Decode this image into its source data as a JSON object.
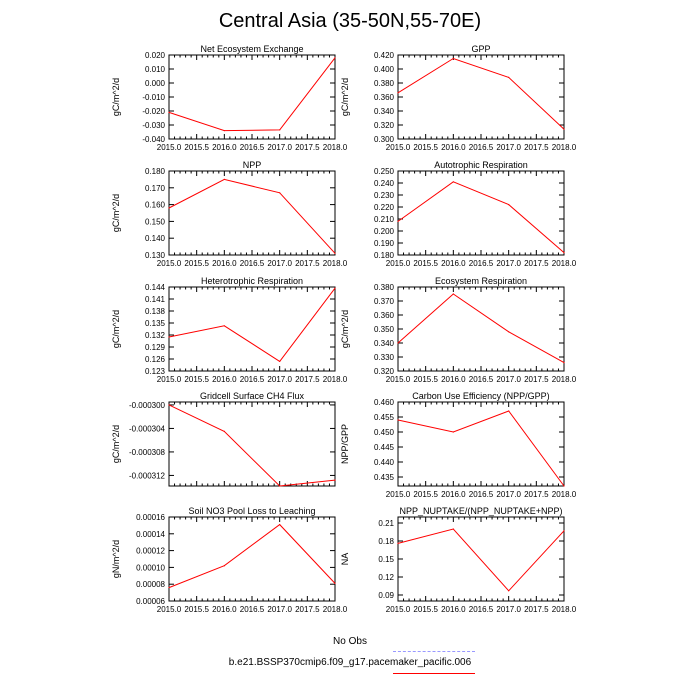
{
  "title": "Central Asia (35-50N,55-70E)",
  "colors": {
    "model": "#ff0000",
    "obs": "#9999ff",
    "axis": "#000000"
  },
  "legend": {
    "obs_label": "No Obs",
    "model_label": "b.e21.BSSP370cmip6.f09_g17.pacemaker_pacific.006"
  },
  "chart_data": [
    {
      "type": "line",
      "title": "Net Ecosystem Exchange",
      "ylabel": "gC/m^2/d",
      "x": [
        2015,
        2016,
        2017,
        2018
      ],
      "values": [
        -0.021,
        -0.034,
        -0.0335,
        0.018
      ],
      "xlim": [
        2015,
        2018
      ],
      "ylim": [
        -0.04,
        0.02
      ],
      "xticks": [
        "2015.0",
        "2015.5",
        "2016.0",
        "2016.5",
        "2017.0",
        "2017.5",
        "2018.0"
      ],
      "yticks": [
        "-0.040",
        "-0.030",
        "-0.020",
        "-0.010",
        "0.000",
        "0.010",
        "0.020"
      ],
      "ytick_values": [
        -0.04,
        -0.03,
        -0.02,
        -0.01,
        0,
        0.01,
        0.02
      ]
    },
    {
      "type": "line",
      "title": "GPP",
      "ylabel": "gC/m^2/d",
      "x": [
        2015,
        2016,
        2017,
        2018
      ],
      "values": [
        0.366,
        0.415,
        0.388,
        0.314
      ],
      "xlim": [
        2015,
        2018
      ],
      "ylim": [
        0.3,
        0.42
      ],
      "xticks": [
        "2015.0",
        "2015.5",
        "2016.0",
        "2016.5",
        "2017.0",
        "2017.5",
        "2018.0"
      ],
      "yticks": [
        "0.300",
        "0.320",
        "0.340",
        "0.360",
        "0.380",
        "0.400",
        "0.420"
      ],
      "ytick_values": [
        0.3,
        0.32,
        0.34,
        0.36,
        0.38,
        0.4,
        0.42
      ]
    },
    {
      "type": "line",
      "title": "NPP",
      "ylabel": "gC/m^2/d",
      "x": [
        2015,
        2016,
        2017,
        2018
      ],
      "values": [
        0.158,
        0.175,
        0.167,
        0.131
      ],
      "xlim": [
        2015,
        2018
      ],
      "ylim": [
        0.13,
        0.18
      ],
      "xticks": [
        "2015.0",
        "2015.5",
        "2016.0",
        "2016.5",
        "2017.0",
        "2017.5",
        "2018.0"
      ],
      "yticks": [
        "0.130",
        "0.140",
        "0.150",
        "0.160",
        "0.170",
        "0.180"
      ],
      "ytick_values": [
        0.13,
        0.14,
        0.15,
        0.16,
        0.17,
        0.18
      ]
    },
    {
      "type": "line",
      "title": "Autotrophic Respiration",
      "ylabel": "",
      "x": [
        2015,
        2016,
        2017,
        2018
      ],
      "values": [
        0.208,
        0.241,
        0.222,
        0.182
      ],
      "xlim": [
        2015,
        2018
      ],
      "ylim": [
        0.18,
        0.25
      ],
      "xticks": [
        "2015.0",
        "2015.5",
        "2016.0",
        "2016.5",
        "2017.0",
        "2017.5",
        "2018.0"
      ],
      "yticks": [
        "0.180",
        "0.190",
        "0.200",
        "0.210",
        "0.220",
        "0.230",
        "0.240",
        "0.250"
      ],
      "ytick_values": [
        0.18,
        0.19,
        0.2,
        0.21,
        0.22,
        0.23,
        0.24,
        0.25
      ]
    },
    {
      "type": "line",
      "title": "Heterotrophic Respiration",
      "ylabel": "gC/m^2/d",
      "x": [
        2015,
        2016,
        2017,
        2018
      ],
      "values": [
        0.1315,
        0.1343,
        0.1254,
        0.1437
      ],
      "xlim": [
        2015,
        2018
      ],
      "ylim": [
        0.123,
        0.144
      ],
      "xticks": [
        "2015.0",
        "2015.5",
        "2016.0",
        "2016.5",
        "2017.0",
        "2017.5",
        "2018.0"
      ],
      "yticks": [
        "0.123",
        "0.126",
        "0.129",
        "0.132",
        "0.135",
        "0.138",
        "0.141",
        "0.144"
      ],
      "ytick_values": [
        0.123,
        0.126,
        0.129,
        0.132,
        0.135,
        0.138,
        0.141,
        0.144
      ]
    },
    {
      "type": "line",
      "title": "Ecosystem Respiration",
      "ylabel": "gC/m^2/d",
      "x": [
        2015,
        2016,
        2017,
        2018
      ],
      "values": [
        0.34,
        0.375,
        0.348,
        0.326
      ],
      "xlim": [
        2015,
        2018
      ],
      "ylim": [
        0.32,
        0.38
      ],
      "xticks": [
        "2015.0",
        "2015.5",
        "2016.0",
        "2016.5",
        "2017.0",
        "2017.5",
        "2018.0"
      ],
      "yticks": [
        "0.320",
        "0.330",
        "0.340",
        "0.350",
        "0.360",
        "0.370",
        "0.380"
      ],
      "ytick_values": [
        0.32,
        0.33,
        0.34,
        0.35,
        0.36,
        0.37,
        0.38
      ]
    },
    {
      "type": "line",
      "title": "Gridcell Surface CH4 Flux",
      "ylabel": "gC/m^2/d",
      "x": [
        2015,
        2016,
        2017,
        2018
      ],
      "values": [
        -0.0003,
        -0.0003045,
        -0.0003138,
        -0.0003128
      ],
      "xlim": [
        2015,
        2018
      ],
      "ylim": [
        -0.0003138,
        -0.0002995
      ],
      "xticks": [],
      "yticks": [
        "-0.000300",
        "-0.000304",
        "-0.000308",
        "-0.000312"
      ],
      "ytick_values": [
        -0.0003,
        -0.000304,
        -0.000308,
        -0.000312
      ]
    },
    {
      "type": "line",
      "title": "Carbon Use Efficiency (NPP/GPP)",
      "ylabel": "NPP/GPP",
      "x": [
        2015,
        2016,
        2017,
        2018
      ],
      "values": [
        0.454,
        0.45,
        0.457,
        0.432
      ],
      "xlim": [
        2015,
        2018
      ],
      "ylim": [
        0.432,
        0.46
      ],
      "xticks": [
        "2015.0",
        "2015.5",
        "2016.0",
        "2016.5",
        "2017.0",
        "2017.5",
        "2018.0"
      ],
      "yticks": [
        "0.435",
        "0.440",
        "0.445",
        "0.450",
        "0.455",
        "0.460"
      ],
      "ytick_values": [
        0.435,
        0.44,
        0.445,
        0.45,
        0.455,
        0.46
      ]
    },
    {
      "type": "line",
      "title": "Soil NO3 Pool Loss to Leaching",
      "ylabel": "gN/m^2/d",
      "x": [
        2015,
        2016,
        2017,
        2018
      ],
      "values": [
        7.6e-05,
        0.000102,
        0.000151,
        8.1e-05
      ],
      "xlim": [
        2015,
        2018
      ],
      "ylim": [
        6e-05,
        0.00016
      ],
      "xticks": [
        "2015.0",
        "2015.5",
        "2016.0",
        "2016.5",
        "2017.0",
        "2017.5",
        "2018.0"
      ],
      "yticks": [
        "0.00006",
        "0.00008",
        "0.00010",
        "0.00012",
        "0.00014",
        "0.00016"
      ],
      "ytick_values": [
        6e-05,
        8e-05,
        0.0001,
        0.00012,
        0.00014,
        0.00016
      ]
    },
    {
      "type": "line",
      "title": "NPP_NUPTAKE/(NPP_NUPTAKE+NPP)",
      "ylabel": "NA",
      "x": [
        2015,
        2016,
        2017,
        2018
      ],
      "values": [
        0.176,
        0.2,
        0.097,
        0.197
      ],
      "xlim": [
        2015,
        2018
      ],
      "ylim": [
        0.08,
        0.22
      ],
      "xticks": [
        "2015.0",
        "2015.5",
        "2016.0",
        "2016.5",
        "2017.0",
        "2017.5",
        "2018.0"
      ],
      "yticks": [
        "0.09",
        "0.12",
        "0.15",
        "0.18",
        "0.21"
      ],
      "ytick_values": [
        0.09,
        0.12,
        0.15,
        0.18,
        0.21
      ]
    }
  ]
}
